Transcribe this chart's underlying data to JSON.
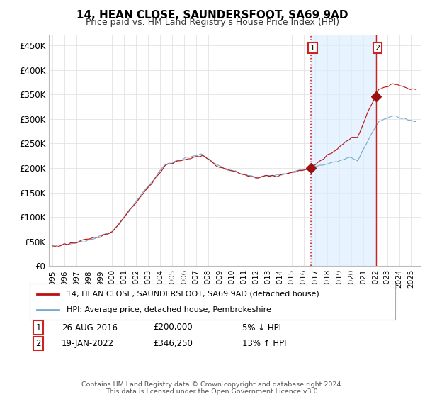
{
  "title": "14, HEAN CLOSE, SAUNDERSFOOT, SA69 9AD",
  "subtitle": "Price paid vs. HM Land Registry's House Price Index (HPI)",
  "ylabel_ticks": [
    "£0",
    "£50K",
    "£100K",
    "£150K",
    "£200K",
    "£250K",
    "£300K",
    "£350K",
    "£400K",
    "£450K"
  ],
  "ytick_vals": [
    0,
    50000,
    100000,
    150000,
    200000,
    250000,
    300000,
    350000,
    400000,
    450000
  ],
  "ylim": [
    0,
    470000
  ],
  "t1_year": 2016.62,
  "t2_year": 2022.04,
  "transaction1": {
    "date": "26-AUG-2016",
    "price": 200000,
    "price_str": "£200,000",
    "pct": "5%",
    "dir": "↓",
    "label": "1"
  },
  "transaction2": {
    "date": "19-JAN-2022",
    "price": 346250,
    "price_str": "£346,250",
    "pct": "13%",
    "dir": "↑",
    "label": "2"
  },
  "line1_color": "#bb1111",
  "line2_color": "#77aacc",
  "shade_color": "#ddeeff",
  "vline1_color": "#cc2222",
  "vline2_color": "#cc2222",
  "marker_color": "#991111",
  "legend_label1": "14, HEAN CLOSE, SAUNDERSFOOT, SA69 9AD (detached house)",
  "legend_label2": "HPI: Average price, detached house, Pembrokeshire",
  "footnote": "Contains HM Land Registry data © Crown copyright and database right 2024.\nThis data is licensed under the Open Government Licence v3.0.",
  "background_color": "#ffffff",
  "plot_bg_color": "#ffffff",
  "grid_color": "#dddddd"
}
